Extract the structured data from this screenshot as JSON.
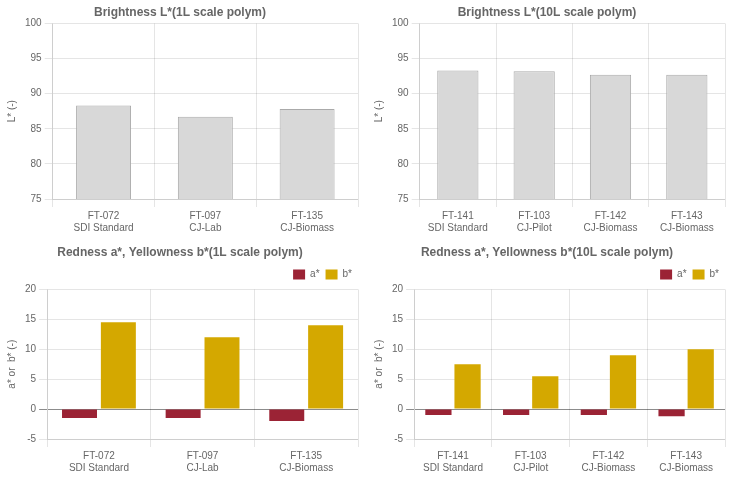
{
  "chart_data": [
    {
      "type": "bar",
      "title": "Brightness L*(1L scale polym)",
      "ylabel": "L* (-)",
      "categories": [
        "FT-072\nSDI Standard",
        "FT-097\nCJ-Lab",
        "FT-135\nCJ-Biomass"
      ],
      "values": [
        88.3,
        86.7,
        87.8
      ],
      "color": "#d8d8d8",
      "ylim": [
        75,
        100
      ],
      "yticks": [
        75,
        80,
        85,
        90,
        95,
        100
      ],
      "grid": true
    },
    {
      "type": "bar",
      "title": "Brightness L*(10L scale polym)",
      "ylabel": "L* (-)",
      "categories": [
        "FT-141\nSDI Standard",
        "FT-103\nCJ-Pilot",
        "FT-142\nCJ-Biomass",
        "FT-143\nCJ-Biomass"
      ],
      "values": [
        93.3,
        93.2,
        92.7,
        92.7
      ],
      "color": "#d8d8d8",
      "ylim": [
        75,
        100
      ],
      "yticks": [
        75,
        80,
        85,
        90,
        95,
        100
      ],
      "grid": true
    },
    {
      "type": "bar",
      "title": "Redness a*, Yellowness b*(1L scale polym)",
      "ylabel": "a* or  b* (-)",
      "categories": [
        "FT-072\nSDI Standard",
        "FT-097\nCJ-Lab",
        "FT-135\nCJ-Biomass"
      ],
      "series": [
        {
          "name": "a*",
          "color": "#9b2335",
          "values": [
            -1.5,
            -1.5,
            -2.0
          ]
        },
        {
          "name": "b*",
          "color": "#d4a800",
          "values": [
            14.5,
            12.0,
            14.0
          ]
        }
      ],
      "ylim": [
        -5,
        20
      ],
      "yticks": [
        -5,
        0,
        5,
        10,
        15,
        20
      ],
      "grid": true,
      "legend": "upper right"
    },
    {
      "type": "bar",
      "title": "Redness a*, Yellowness b*(10L scale polym)",
      "ylabel": "a* or  b* (-)",
      "categories": [
        "FT-141\nSDI Standard",
        "FT-103\nCJ-Pilot",
        "FT-142\nCJ-Biomass",
        "FT-143\nCJ-Biomass"
      ],
      "series": [
        {
          "name": "a*",
          "color": "#9b2335",
          "values": [
            -1.0,
            -1.0,
            -1.0,
            -1.2
          ]
        },
        {
          "name": "b*",
          "color": "#d4a800",
          "values": [
            7.5,
            5.5,
            9.0,
            10.0
          ]
        }
      ],
      "ylim": [
        -5,
        20
      ],
      "yticks": [
        -5,
        0,
        5,
        10,
        15,
        20
      ],
      "grid": true,
      "legend": "upper right"
    }
  ]
}
